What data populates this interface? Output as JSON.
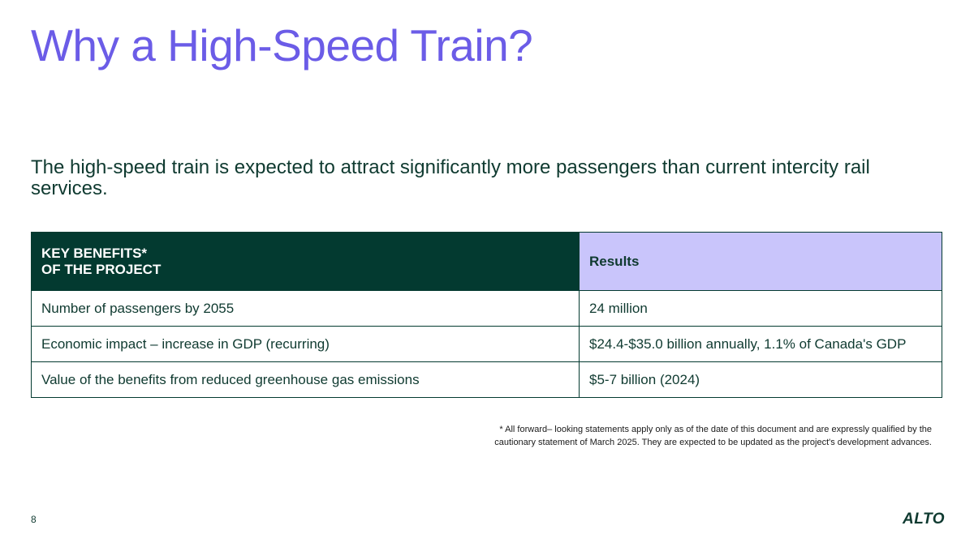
{
  "slide": {
    "title": "Why a High-Speed Train?",
    "subtitle": "The high-speed train is expected to attract significantly more passengers than current intercity rail services.",
    "page_number": "8",
    "brand": "ALTO"
  },
  "table": {
    "header_benefit_line1": "KEY BENEFITS*",
    "header_benefit_line2": "OF THE PROJECT",
    "header_result": "Results",
    "rows": [
      {
        "benefit": "Number of passengers by 2055",
        "result": "24 million"
      },
      {
        "benefit": "Economic impact – increase in GDP (recurring)",
        "result": "$24.4-$35.0 billion annually, 1.1% of Canada's GDP"
      },
      {
        "benefit": "Value of the benefits from reduced greenhouse gas emissions",
        "result": "$5-7 billion (2024)"
      }
    ]
  },
  "footnote": {
    "line1": "* All forward– looking statements apply only as of the date of this document and are expressly qualified by the",
    "line2": "cautionary statement of March 2025. They are expected to be updated as the project's development advances."
  },
  "colors": {
    "title": "#6b5ce7",
    "header_dark": "#033a30",
    "header_light": "#c9c5fb",
    "text": "#0f3a30"
  }
}
